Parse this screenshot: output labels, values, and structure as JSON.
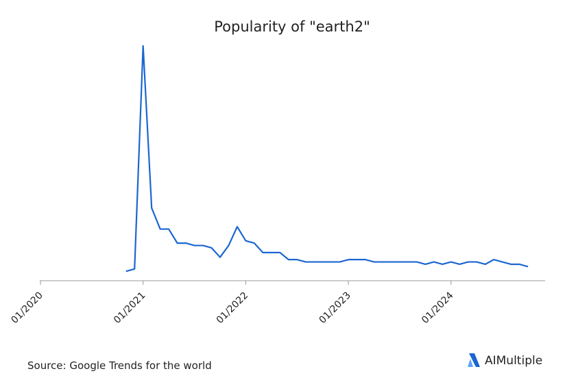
{
  "chart_data": {
    "type": "line",
    "title": "Popularity of \"earth2\"",
    "x": [
      "2020-11",
      "2020-12",
      "2021-01",
      "2021-02",
      "2021-03",
      "2021-04",
      "2021-05",
      "2021-06",
      "2021-07",
      "2021-08",
      "2021-09",
      "2021-10",
      "2021-11",
      "2021-12",
      "2022-01",
      "2022-02",
      "2022-03",
      "2022-04",
      "2022-05",
      "2022-06",
      "2022-07",
      "2022-08",
      "2022-09",
      "2022-10",
      "2022-11",
      "2022-12",
      "2023-01",
      "2023-02",
      "2023-03",
      "2023-04",
      "2023-05",
      "2023-06",
      "2023-07",
      "2023-08",
      "2023-09",
      "2023-10",
      "2023-11",
      "2023-12",
      "2024-01",
      "2024-02",
      "2024-03",
      "2024-04",
      "2024-05",
      "2024-06",
      "2024-07",
      "2024-08",
      "2024-09",
      "2024-10"
    ],
    "series": [
      {
        "name": "earth2",
        "color": "#1a66d2",
        "values": [
          4,
          5,
          100,
          31,
          22,
          22,
          16,
          16,
          15,
          15,
          14,
          10,
          15,
          23,
          17,
          16,
          12,
          12,
          12,
          9,
          9,
          8,
          8,
          8,
          8,
          8,
          9,
          9,
          9,
          8,
          8,
          8,
          8,
          8,
          8,
          7,
          8,
          7,
          8,
          7,
          8,
          8,
          7,
          9,
          8,
          7,
          7,
          6
        ]
      }
    ],
    "xlim": [
      "2020-01",
      "2024-12"
    ],
    "xticks": [
      {
        "value": "2020-01",
        "label": "01/2020"
      },
      {
        "value": "2021-01",
        "label": "01/2021"
      },
      {
        "value": "2022-01",
        "label": "01/2022"
      },
      {
        "value": "2023-01",
        "label": "01/2023"
      },
      {
        "value": "2024-01",
        "label": "01/2024"
      }
    ],
    "ylim": [
      0,
      100
    ],
    "source": "Source: Google Trends for the world",
    "brand": "AIMultiple"
  }
}
